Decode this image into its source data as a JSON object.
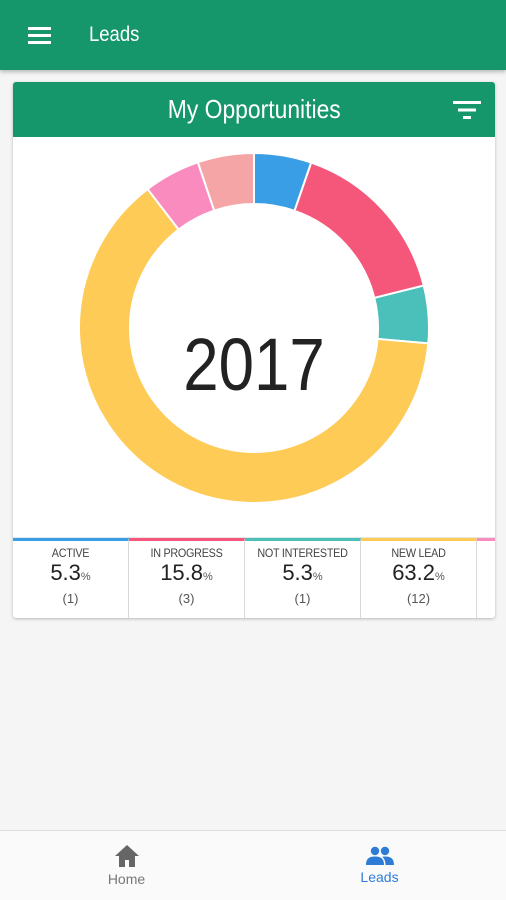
{
  "appbar": {
    "title": "Leads"
  },
  "card": {
    "title": "My Opportunities",
    "center_label": "2017"
  },
  "chart_data": {
    "type": "pie",
    "title": "My Opportunities",
    "center_text": "2017",
    "slices": [
      {
        "label": "ACTIVE",
        "percent": 5.3,
        "count": 1,
        "color": "#3a9ee6"
      },
      {
        "label": "IN PROGRESS",
        "percent": 15.8,
        "count": 3,
        "color": "#f4577a"
      },
      {
        "label": "NOT INTERESTED",
        "percent": 5.3,
        "count": 1,
        "color": "#4bbfb9"
      },
      {
        "label": "NEW LEAD",
        "percent": 63.2,
        "count": 12,
        "color": "#fecb57"
      },
      {
        "label": "",
        "percent": 5.2,
        "count": 1,
        "color": "#f98bbf"
      },
      {
        "label": "",
        "percent": 5.2,
        "count": 1,
        "color": "#f6a5a6"
      }
    ]
  },
  "legend": [
    {
      "label": "ACTIVE",
      "percent": "5.3",
      "unit": "%",
      "count": "(1)",
      "color": "#3a9ee6"
    },
    {
      "label": "IN PROGRESS",
      "percent": "15.8",
      "unit": "%",
      "count": "(3)",
      "color": "#f4577a"
    },
    {
      "label": "NOT INTERESTED",
      "percent": "5.3",
      "unit": "%",
      "count": "(1)",
      "color": "#4bbfb9"
    },
    {
      "label": "NEW LEAD",
      "percent": "63.2",
      "unit": "%",
      "count": "(12)",
      "color": "#fecb57"
    },
    {
      "label": "",
      "percent": "",
      "unit": "",
      "count": "",
      "color": "#f98bbf"
    }
  ],
  "bottom_nav": {
    "home": {
      "label": "Home",
      "icon": "home-icon"
    },
    "leads": {
      "label": "Leads",
      "icon": "people-icon"
    }
  },
  "colors": {
    "primary": "#16976b",
    "active_nav": "#2f7cd6"
  }
}
